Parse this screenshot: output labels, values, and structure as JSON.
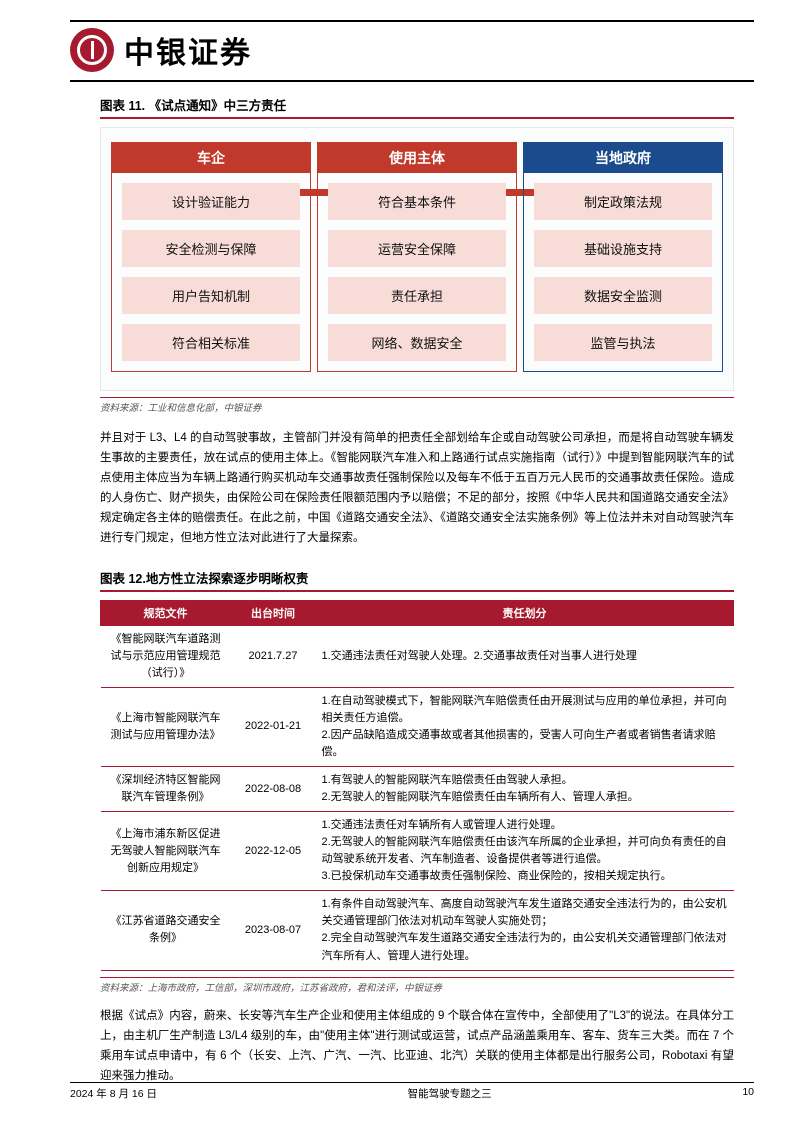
{
  "brand": "中银证券",
  "figure11": {
    "title": "图表 11. 《试点通知》中三方责任",
    "source": "资料来源：工业和信息化部，中银证券",
    "cols": [
      {
        "head": "车企",
        "style": "red",
        "items": [
          "设计验证能力",
          "安全检测与保障",
          "用户告知机制",
          "符合相关标准"
        ]
      },
      {
        "head": "使用主体",
        "style": "red",
        "items": [
          "符合基本条件",
          "运营安全保障",
          "责任承担",
          "网络、数据安全"
        ]
      },
      {
        "head": "当地政府",
        "style": "blue",
        "items": [
          "制定政策法规",
          "基础设施支持",
          "数据安全监测",
          "监管与执法"
        ]
      }
    ]
  },
  "para1": "并且对于 L3、L4 的自动驾驶事故，主管部门并没有简单的把责任全部划给车企或自动驾驶公司承担，而是将自动驾驶车辆发生事故的主要责任，放在试点的使用主体上。《智能网联汽车准入和上路通行试点实施指南（试行）》中提到智能网联汽车的试点使用主体应当为车辆上路通行购买机动车交通事故责任强制保险以及每车不低于五百万元人民币的交通事故责任保险。造成的人身伤亡、财产损失，由保险公司在保险责任限额范围内予以赔偿；不足的部分，按照《中华人民共和国道路交通安全法》规定确定各主体的赔偿责任。在此之前，中国《道路交通安全法》、《道路交通安全法实施条例》等上位法并未对自动驾驶汽车进行专门规定，但地方性立法对此进行了大量探索。",
  "figure12": {
    "title": "图表 12.地方性立法探索逐步明晰权责",
    "headers": [
      "规范文件",
      "出台时间",
      "责任划分"
    ],
    "rows": [
      {
        "doc": "《智能网联汽车道路测试与示范应用管理规范（试行）》",
        "date": "2021.7.27",
        "resp": "1.交通违法责任对驾驶人处理。2.交通事故责任对当事人进行处理"
      },
      {
        "doc": "《上海市智能网联汽车测试与应用管理办法》",
        "date": "2022-01-21",
        "resp": "1.在自动驾驶模式下，智能网联汽车赔偿责任由开展测试与应用的单位承担，并可向相关责任方追偿。\n2.因产品缺陷造成交通事故或者其他损害的，受害人可向生产者或者销售者请求赔偿。"
      },
      {
        "doc": "《深圳经济特区智能网联汽车管理条例》",
        "date": "2022-08-08",
        "resp": "1.有驾驶人的智能网联汽车赔偿责任由驾驶人承担。\n2.无驾驶人的智能网联汽车赔偿责任由车辆所有人、管理人承担。"
      },
      {
        "doc": "《上海市浦东新区促进无驾驶人智能网联汽车创新应用规定》",
        "date": "2022-12-05",
        "resp": "1.交通违法责任对车辆所有人或管理人进行处理。\n2.无驾驶人的智能网联汽车赔偿责任由该汽车所属的企业承担，并可向负有责任的自动驾驶系统开发者、汽车制造者、设备提供者等进行追偿。\n3.已投保机动车交通事故责任强制保险、商业保险的，按相关规定执行。"
      },
      {
        "doc": "《江苏省道路交通安全条例》",
        "date": "2023-08-07",
        "resp": "1.有条件自动驾驶汽车、高度自动驾驶汽车发生道路交通安全违法行为的，由公安机关交通管理部门依法对机动车驾驶人实施处罚；\n2.完全自动驾驶汽车发生道路交通安全违法行为的，由公安机关交通管理部门依法对汽车所有人、管理人进行处理。"
      }
    ],
    "source": "资料来源：上海市政府，工信部，深圳市政府，江苏省政府，君和法评，中银证券"
  },
  "para2": "根据《试点》内容，蔚来、长安等汽车生产企业和使用主体组成的 9 个联合体在宣传中，全部使用了\"L3\"的说法。在具体分工上，由主机厂生产制造 L3/L4 级别的车，由\"使用主体\"进行测试或运营，试点产品涵盖乘用车、客车、货车三大类。而在 7 个乘用车试点申请中，有 6 个（长安、上汽、广汽、一汽、比亚迪、北汽）关联的使用主体都是出行服务公司，Robotaxi 有望迎来强力推动。",
  "footer": {
    "date": "2024 年 8 月 16 日",
    "title": "智能驾驶专题之三",
    "page": "10"
  }
}
